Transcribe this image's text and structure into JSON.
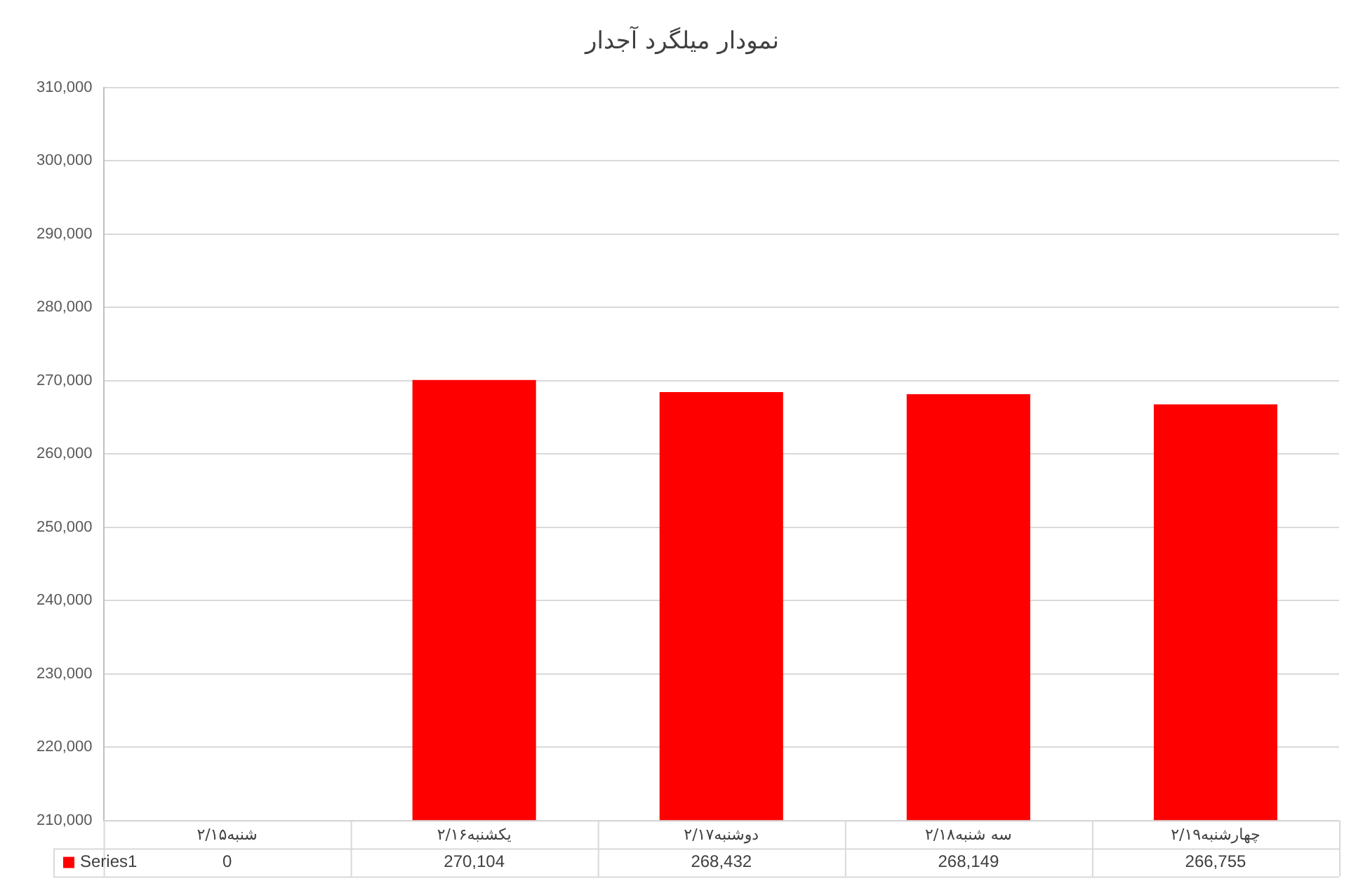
{
  "chart_data": {
    "type": "bar",
    "title": "نمودار میلگرد آجدار",
    "categories": [
      "شنبه۲/۱۵",
      "یکشنبه۲/۱۶",
      "دوشنبه۲/۱۷",
      "سه شنبه۲/۱۸",
      "چهارشنبه۲/۱۹"
    ],
    "series": [
      {
        "name": "Series1",
        "color": "#ff0000",
        "values": [
          null,
          270104,
          268432,
          268149,
          266755
        ],
        "value_labels": [
          "0",
          "270,104",
          "268,432",
          "268,149",
          "266,755"
        ]
      }
    ],
    "ylim": [
      210000,
      310000
    ],
    "yticks": [
      {
        "value": 210000,
        "label": "210,000"
      },
      {
        "value": 220000,
        "label": "220,000"
      },
      {
        "value": 230000,
        "label": "230,000"
      },
      {
        "value": 240000,
        "label": "240,000"
      },
      {
        "value": 250000,
        "label": "250,000"
      },
      {
        "value": 260000,
        "label": "260,000"
      },
      {
        "value": 270000,
        "label": "270,000"
      },
      {
        "value": 280000,
        "label": "280,000"
      },
      {
        "value": 290000,
        "label": "290,000"
      },
      {
        "value": 300000,
        "label": "300,000"
      },
      {
        "value": 310000,
        "label": "310,000"
      }
    ],
    "grid": "y",
    "legend": "bottom"
  }
}
